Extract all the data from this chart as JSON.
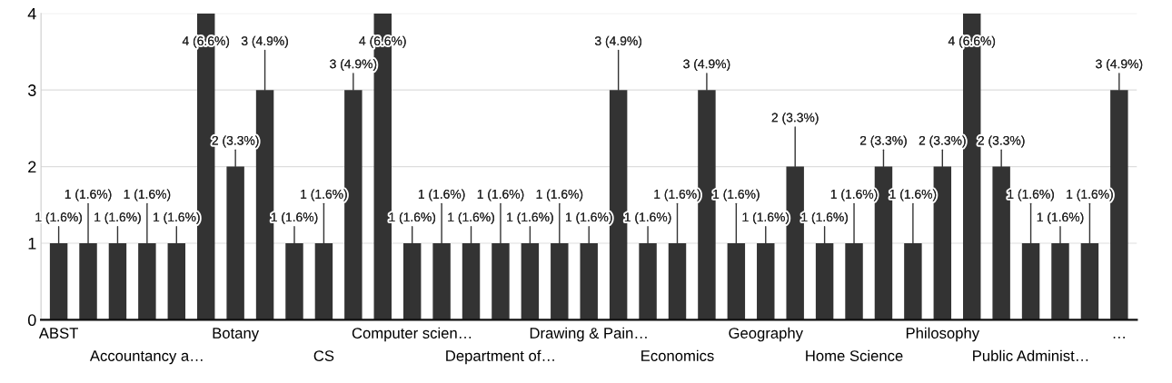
{
  "chart_data": {
    "type": "bar",
    "categories": [
      "ABST",
      null,
      null,
      "Accountancy a…",
      null,
      null,
      "Botany",
      null,
      null,
      "CS",
      null,
      null,
      "Computer scien…",
      null,
      null,
      "Department of…",
      null,
      null,
      "Drawing & Pain…",
      null,
      null,
      "Economics",
      null,
      null,
      "Geography",
      null,
      null,
      "Home Science",
      null,
      null,
      "Philosophy",
      null,
      null,
      "Public Administ…",
      null,
      null,
      "…"
    ],
    "values": [
      1,
      1,
      1,
      1,
      1,
      4,
      2,
      3,
      1,
      1,
      3,
      4,
      1,
      1,
      1,
      1,
      1,
      1,
      1,
      3,
      1,
      1,
      3,
      1,
      1,
      2,
      1,
      1,
      2,
      1,
      2,
      4,
      2,
      1,
      1,
      1,
      3
    ],
    "value_labels": [
      "1 (1.6%)",
      "1 (1.6%)",
      "1 (1.6%)",
      "1 (1.6%)",
      "1 (1.6%)",
      "4 (6.6%)",
      "2 (3.3%)",
      "3 (4.9%)",
      "1 (1.6%)",
      "1 (1.6%)",
      "3 (4.9%)",
      "4 (6.6%)",
      "1 (1.6%)",
      "1 (1.6%)",
      "1 (1.6%)",
      "1 (1.6%)",
      "1 (1.6%)",
      "1 (1.6%)",
      "1 (1.6%)",
      "3 (4.9%)",
      "1 (1.6%)",
      "1 (1.6%)",
      "3 (4.9%)",
      "1 (1.6%)",
      "1 (1.6%)",
      "2 (3.3%)",
      "1 (1.6%)",
      "1 (1.6%)",
      "2 (3.3%)",
      "1 (1.6%)",
      "2 (3.3%)",
      "4 (6.6%)",
      "2 (3.3%)",
      "1 (1.6%)",
      "1 (1.6%)",
      "1 (1.6%)",
      "3 (4.9%)"
    ],
    "color": "#333333",
    "ylim": [
      0,
      4
    ],
    "yticks": [
      0,
      1,
      2,
      3,
      4
    ],
    "grid": "y"
  }
}
